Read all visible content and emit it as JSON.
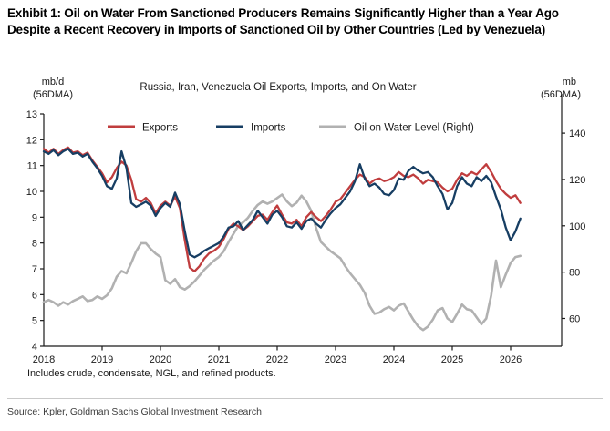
{
  "exhibit_title": "Exhibit 1: Oil on Water From Sanctioned Producers Remains Significantly Higher than a Year Ago Despite a Recent Recovery in Imports of Sanctioned Oil by Other Countries (Led by Venezuela)",
  "footnote": "Includes crude, condensate, NGL, and refined products.",
  "source": "Source: Kpler, Goldman Sachs Global Investment Research",
  "chart_data": {
    "type": "line",
    "title": "Russia, Iran, Venezuela Oil Exports, Imports, and On Water",
    "legend_position": "top",
    "grid": "off",
    "frame_color": "#1a1a1a",
    "text_color": "#1a1a1a",
    "x_axis": {
      "min": 2018,
      "max": 2026.875,
      "tick_labels": [
        "2018",
        "2019",
        "2020",
        "2021",
        "2022",
        "2023",
        "2024",
        "2025",
        "2026"
      ],
      "tick_values": [
        2018,
        2019,
        2020,
        2021,
        2022,
        2023,
        2024,
        2025,
        2026
      ]
    },
    "left_axis": {
      "label_line1": "mb/d",
      "label_line2": "(56DMA)",
      "min": 4,
      "max": 13,
      "ticks": [
        4,
        5,
        6,
        7,
        8,
        9,
        10,
        11,
        12,
        13
      ]
    },
    "right_axis": {
      "label_line1": "mb",
      "label_line2": "(56DMA)",
      "min": 48,
      "max": 148.3,
      "ticks": [
        60,
        80,
        100,
        120,
        140
      ]
    },
    "x_start": 2018.0,
    "x_step_years": 0.0833333,
    "series": [
      {
        "name": "Oil on Water Level (Right)",
        "color": "#b1b1b1",
        "axis": "right",
        "line_width": 2.6,
        "values": [
          67,
          68,
          67,
          65.5,
          67,
          66,
          67.5,
          68.5,
          69.5,
          67.5,
          68,
          69.5,
          68.5,
          70,
          73,
          78,
          80.5,
          79.5,
          84,
          89,
          92.5,
          92.5,
          90,
          88,
          86.5,
          76.5,
          75,
          77,
          73.5,
          72.5,
          74,
          76,
          78.5,
          81,
          83,
          85,
          86.5,
          89,
          93,
          96.5,
          100,
          101.5,
          103.5,
          106.5,
          109,
          110.5,
          109.5,
          110.5,
          112,
          113.5,
          110.5,
          108.5,
          110,
          113,
          110.5,
          106.5,
          99,
          93,
          91,
          89,
          87.5,
          86,
          82.5,
          79.5,
          77,
          74.5,
          71,
          65.5,
          62,
          62.5,
          64,
          65,
          63.5,
          65.5,
          66.5,
          63,
          59.5,
          56.5,
          55,
          56.5,
          59.5,
          63.5,
          64.5,
          60,
          58.5,
          62,
          66,
          64,
          63.5,
          60.5,
          57.5,
          60,
          70,
          85,
          73.5,
          79,
          84,
          86.5,
          87
        ]
      },
      {
        "name": "Exports",
        "color": "#c03d3e",
        "axis": "left",
        "line_width": 2.3,
        "values": [
          11.65,
          11.5,
          11.65,
          11.45,
          11.6,
          11.7,
          11.5,
          11.55,
          11.4,
          11.5,
          11.2,
          10.95,
          10.7,
          10.35,
          10.55,
          10.9,
          11.15,
          11.0,
          10.45,
          9.7,
          9.6,
          9.75,
          9.55,
          9.15,
          9.45,
          9.6,
          9.45,
          9.8,
          9.35,
          8.1,
          7.05,
          6.9,
          7.1,
          7.4,
          7.6,
          7.7,
          7.85,
          8.15,
          8.55,
          8.75,
          8.65,
          8.5,
          8.65,
          8.85,
          9.05,
          9.1,
          8.9,
          9.2,
          9.45,
          9.1,
          8.8,
          8.75,
          8.9,
          8.65,
          9.0,
          9.2,
          9.0,
          8.85,
          9.05,
          9.3,
          9.6,
          9.7,
          9.95,
          10.2,
          10.45,
          10.65,
          10.55,
          10.3,
          10.45,
          10.5,
          10.4,
          10.45,
          10.55,
          10.75,
          10.6,
          10.55,
          10.65,
          10.5,
          10.3,
          10.45,
          10.4,
          10.35,
          10.15,
          10.0,
          10.1,
          10.45,
          10.7,
          10.6,
          10.75,
          10.65,
          10.85,
          11.05,
          10.75,
          10.4,
          10.1,
          9.9,
          9.75,
          9.85,
          9.55
        ]
      },
      {
        "name": "Imports",
        "color": "#173e63",
        "axis": "left",
        "line_width": 2.3,
        "values": [
          11.55,
          11.45,
          11.6,
          11.4,
          11.55,
          11.65,
          11.45,
          11.5,
          11.35,
          11.45,
          11.15,
          10.9,
          10.6,
          10.2,
          10.1,
          10.5,
          11.55,
          10.9,
          9.55,
          9.4,
          9.5,
          9.6,
          9.45,
          9.05,
          9.35,
          9.55,
          9.4,
          9.95,
          9.5,
          8.45,
          7.55,
          7.45,
          7.55,
          7.7,
          7.8,
          7.9,
          8.0,
          8.25,
          8.6,
          8.65,
          8.85,
          8.5,
          8.7,
          8.9,
          9.25,
          9.0,
          8.75,
          9.1,
          9.25,
          9.0,
          8.65,
          8.6,
          8.8,
          8.55,
          8.85,
          8.95,
          8.75,
          8.6,
          8.9,
          9.15,
          9.35,
          9.5,
          9.75,
          10.0,
          10.4,
          11.05,
          10.5,
          10.2,
          10.3,
          10.15,
          9.9,
          9.85,
          10.05,
          10.5,
          10.45,
          10.8,
          10.95,
          10.8,
          10.7,
          10.75,
          10.55,
          10.2,
          9.9,
          9.3,
          9.55,
          10.2,
          10.55,
          10.3,
          10.2,
          10.55,
          10.4,
          10.6,
          10.35,
          9.8,
          9.3,
          8.6,
          8.1,
          8.45,
          8.95
        ]
      }
    ],
    "legend_order": [
      "Exports",
      "Imports",
      "Oil on Water Level (Right)"
    ]
  }
}
